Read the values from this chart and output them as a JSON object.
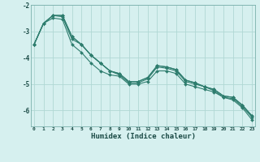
{
  "xlabel": "Humidex (Indice chaleur)",
  "background_color": "#d6f0ef",
  "line_color": "#2e7d6e",
  "grid_color": "#b0d8d4",
  "spine_color": "#7ab0ab",
  "tick_label_color": "#1a4a45",
  "x_ticks": [
    0,
    1,
    2,
    3,
    4,
    5,
    6,
    7,
    8,
    9,
    10,
    11,
    12,
    13,
    14,
    15,
    16,
    17,
    18,
    19,
    20,
    21,
    22,
    23
  ],
  "y_ticks": [
    -6,
    -5,
    -4,
    -3,
    -2
  ],
  "ylim": [
    -6.6,
    -2.0
  ],
  "xlim": [
    -0.3,
    23.3
  ],
  "series": [
    [
      -3.5,
      -2.7,
      -2.5,
      -2.55,
      -3.5,
      -3.8,
      -4.2,
      -4.5,
      -4.65,
      -4.7,
      -5.0,
      -5.0,
      -4.9,
      -4.5,
      -4.5,
      -4.6,
      -5.0,
      -5.1,
      -5.2,
      -5.3,
      -5.5,
      -5.6,
      -5.9,
      -6.35
    ],
    [
      -3.5,
      -2.7,
      -2.4,
      -2.45,
      -3.3,
      -3.5,
      -3.9,
      -4.2,
      -4.5,
      -4.65,
      -4.95,
      -4.95,
      -4.8,
      -4.35,
      -4.4,
      -4.5,
      -4.9,
      -5.0,
      -5.1,
      -5.25,
      -5.5,
      -5.55,
      -5.85,
      -6.25
    ],
    [
      -3.5,
      -2.7,
      -2.4,
      -2.4,
      -3.2,
      -3.5,
      -3.9,
      -4.2,
      -4.5,
      -4.6,
      -4.9,
      -4.9,
      -4.75,
      -4.3,
      -4.35,
      -4.45,
      -4.85,
      -4.95,
      -5.1,
      -5.2,
      -5.45,
      -5.5,
      -5.8,
      -6.2
    ],
    [
      -3.5,
      -2.7,
      -2.4,
      -2.4,
      -3.2,
      -3.5,
      -3.9,
      -4.2,
      -4.5,
      -4.6,
      -4.9,
      -4.9,
      -4.75,
      -4.3,
      -4.35,
      -4.45,
      -4.85,
      -4.95,
      -5.1,
      -5.2,
      -5.45,
      -5.5,
      -5.8,
      -6.2
    ]
  ]
}
